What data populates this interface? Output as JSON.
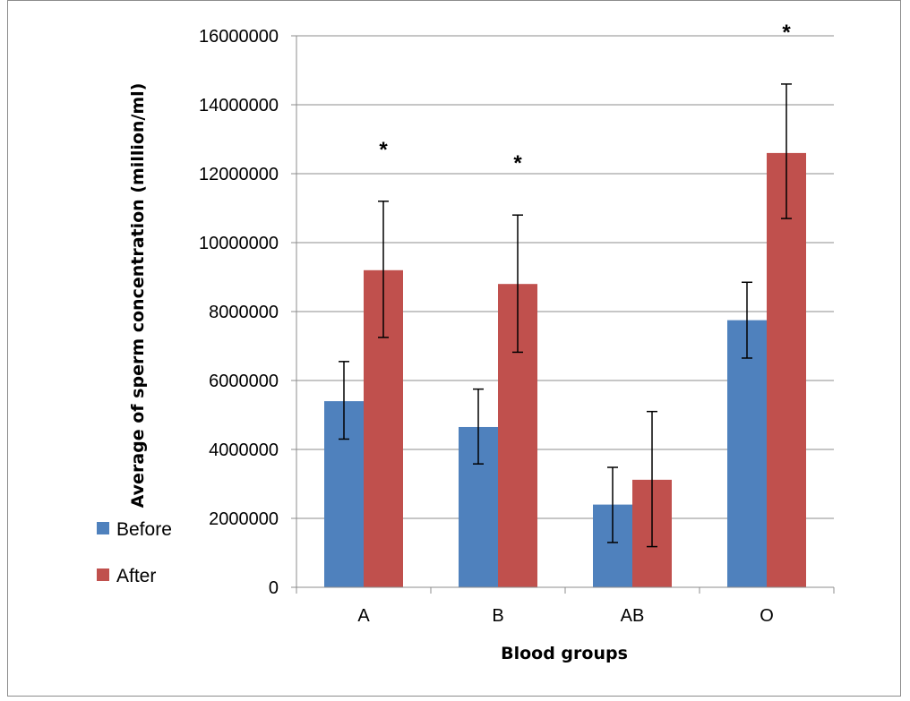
{
  "chart_data": {
    "type": "bar",
    "title": "",
    "xlabel": "Blood groups",
    "ylabel": "Average of sperm concentration  (million/ml)",
    "categories": [
      "A",
      "B",
      "AB",
      "O"
    ],
    "ylim": [
      0,
      16000000
    ],
    "yticks": [
      0,
      2000000,
      4000000,
      6000000,
      8000000,
      10000000,
      12000000,
      14000000,
      16000000
    ],
    "ytick_labels": [
      "0",
      "2000000",
      "4000000",
      "6000000",
      "8000000",
      "10000000",
      "12000000",
      "14000000",
      "16000000"
    ],
    "grid": "horizontal major gridlines",
    "legend_position": "left-bottom",
    "series": [
      {
        "name": "Before",
        "color": "#4F81BD",
        "values": [
          5400000,
          4650000,
          2400000,
          7750000
        ],
        "error_low": [
          4300000,
          3580000,
          1300000,
          6650000
        ],
        "error_high": [
          6550000,
          5750000,
          3480000,
          8850000
        ]
      },
      {
        "name": "After",
        "color": "#C0504D",
        "values": [
          9200000,
          8800000,
          3120000,
          12600000
        ],
        "error_low": [
          7250000,
          6820000,
          1180000,
          10700000
        ],
        "error_high": [
          11200000,
          10800000,
          5100000,
          14600000
        ]
      }
    ],
    "annotations": [
      {
        "category": "A",
        "series": "After",
        "text": "*"
      },
      {
        "category": "B",
        "series": "After",
        "text": "*"
      },
      {
        "category": "O",
        "series": "After",
        "text": "*"
      }
    ]
  }
}
